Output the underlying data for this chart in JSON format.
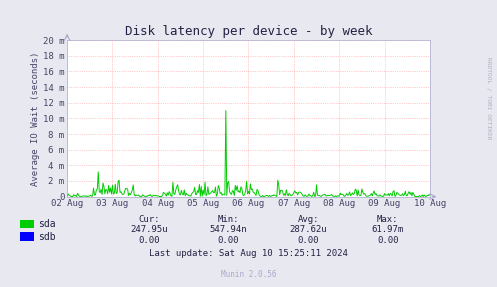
{
  "title": "Disk latency per device - by week",
  "ylabel": "Average IO Wait (seconds)",
  "bg_color": "#e8e8f0",
  "plot_bg_color": "#ffffff",
  "grid_color": "#ff9999",
  "x_start": 0,
  "x_end": 691200,
  "y_ticks": [
    0,
    2,
    4,
    6,
    8,
    10,
    12,
    14,
    16,
    18,
    20
  ],
  "y_tick_labels": [
    "0",
    "2 m",
    "4 m",
    "6 m",
    "8 m",
    "10 m",
    "12 m",
    "14 m",
    "16 m",
    "18 m",
    "20 m"
  ],
  "y_max": 20,
  "x_tick_positions": [
    0,
    86400,
    172800,
    259200,
    345600,
    432000,
    518400,
    604800,
    691200
  ],
  "x_tick_labels": [
    "02 Aug",
    "03 Aug",
    "04 Aug",
    "05 Aug",
    "06 Aug",
    "07 Aug",
    "08 Aug",
    "09 Aug",
    "10 Aug"
  ],
  "sda_color": "#00cc00",
  "sdb_color": "#0000ff",
  "watermark": "RRDTOOL / TOBI OETIKER",
  "footer_text": "Munin 2.0.56",
  "stats_header": [
    "Cur:",
    "Min:",
    "Avg:",
    "Max:"
  ],
  "stats_sda": [
    "247.95u",
    "547.94n",
    "287.62u",
    "61.97m"
  ],
  "stats_sdb": [
    "0.00",
    "0.00",
    "0.00",
    "0.00"
  ],
  "last_update": "Last update: Sat Aug 10 15:25:11 2024",
  "arrow_color": "#aaaacc",
  "text_color": "#222244",
  "tick_color": "#444466"
}
